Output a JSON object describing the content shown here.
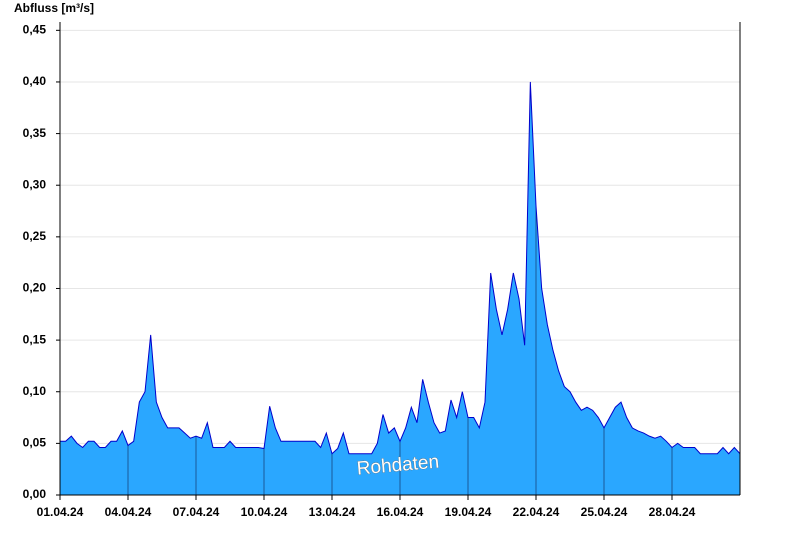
{
  "chart_data": {
    "type": "area",
    "y_label": "Abfluss [m³/s]",
    "annotation": "Rohdaten",
    "color": "#2aa7ff",
    "line_color": "#0000cc",
    "grid": true,
    "xlim": [
      0,
      30
    ],
    "ylim": [
      0,
      0.46
    ],
    "xticks": [
      {
        "value": 0,
        "label": "01.04.24"
      },
      {
        "value": 3,
        "label": "04.04.24"
      },
      {
        "value": 6,
        "label": "07.04.24"
      },
      {
        "value": 9,
        "label": "10.04.24"
      },
      {
        "value": 12,
        "label": "13.04.24"
      },
      {
        "value": 15,
        "label": "16.04.24"
      },
      {
        "value": 18,
        "label": "19.04.24"
      },
      {
        "value": 21,
        "label": "22.04.24"
      },
      {
        "value": 24,
        "label": "25.04.24"
      },
      {
        "value": 27,
        "label": "28.04.24"
      }
    ],
    "yticks": [
      {
        "value": 0,
        "label": "0,00"
      },
      {
        "value": 0.05,
        "label": "0,05"
      },
      {
        "value": 0.1,
        "label": "0,10"
      },
      {
        "value": 0.15,
        "label": "0,15"
      },
      {
        "value": 0.2,
        "label": "0,20"
      },
      {
        "value": 0.25,
        "label": "0,25"
      },
      {
        "value": 0.3,
        "label": "0,30"
      },
      {
        "value": 0.35,
        "label": "0,35"
      },
      {
        "value": 0.4,
        "label": "0,40"
      },
      {
        "value": 0.45,
        "label": "0,45"
      }
    ],
    "x": [
      0,
      0.25,
      0.5,
      0.75,
      1,
      1.25,
      1.5,
      1.75,
      2,
      2.25,
      2.5,
      2.75,
      3,
      3.25,
      3.5,
      3.75,
      4,
      4.25,
      4.5,
      4.75,
      5,
      5.25,
      5.5,
      5.75,
      6,
      6.25,
      6.5,
      6.75,
      7,
      7.25,
      7.5,
      7.75,
      8,
      8.25,
      8.5,
      8.75,
      9,
      9.25,
      9.5,
      9.75,
      10,
      10.25,
      10.5,
      10.75,
      11,
      11.25,
      11.5,
      11.75,
      12,
      12.25,
      12.5,
      12.75,
      13,
      13.25,
      13.5,
      13.75,
      14,
      14.25,
      14.5,
      14.75,
      15,
      15.25,
      15.5,
      15.75,
      16,
      16.25,
      16.5,
      16.75,
      17,
      17.25,
      17.5,
      17.75,
      18,
      18.25,
      18.5,
      18.75,
      19,
      19.25,
      19.5,
      19.75,
      20,
      20.25,
      20.5,
      20.75,
      21,
      21.25,
      21.5,
      21.75,
      22,
      22.25,
      22.5,
      22.75,
      23,
      23.25,
      23.5,
      23.75,
      24,
      24.25,
      24.5,
      24.75,
      25,
      25.25,
      25.5,
      25.75,
      26,
      26.25,
      26.5,
      26.75,
      27,
      27.25,
      27.5,
      27.75,
      28,
      28.25,
      28.5,
      28.75,
      29,
      29.25,
      29.5,
      29.75,
      30
    ],
    "values": [
      0.052,
      0.052,
      0.057,
      0.05,
      0.046,
      0.052,
      0.052,
      0.046,
      0.046,
      0.052,
      0.052,
      0.062,
      0.048,
      0.052,
      0.09,
      0.1,
      0.155,
      0.09,
      0.075,
      0.065,
      0.065,
      0.065,
      0.06,
      0.055,
      0.057,
      0.055,
      0.07,
      0.046,
      0.046,
      0.046,
      0.052,
      0.046,
      0.046,
      0.046,
      0.046,
      0.046,
      0.045,
      0.086,
      0.065,
      0.052,
      0.052,
      0.052,
      0.052,
      0.052,
      0.052,
      0.052,
      0.046,
      0.06,
      0.04,
      0.045,
      0.06,
      0.04,
      0.04,
      0.04,
      0.04,
      0.04,
      0.05,
      0.078,
      0.06,
      0.065,
      0.052,
      0.065,
      0.085,
      0.07,
      0.112,
      0.09,
      0.07,
      0.06,
      0.062,
      0.092,
      0.075,
      0.1,
      0.075,
      0.075,
      0.065,
      0.09,
      0.215,
      0.18,
      0.155,
      0.18,
      0.215,
      0.19,
      0.145,
      0.4,
      0.28,
      0.2,
      0.165,
      0.14,
      0.12,
      0.105,
      0.1,
      0.09,
      0.082,
      0.085,
      0.082,
      0.075,
      0.065,
      0.075,
      0.085,
      0.09,
      0.075,
      0.065,
      0.062,
      0.06,
      0.057,
      0.055,
      0.057,
      0.052,
      0.046,
      0.05,
      0.046,
      0.046,
      0.046,
      0.04,
      0.04,
      0.04,
      0.04,
      0.046,
      0.04,
      0.046,
      0.04
    ]
  }
}
